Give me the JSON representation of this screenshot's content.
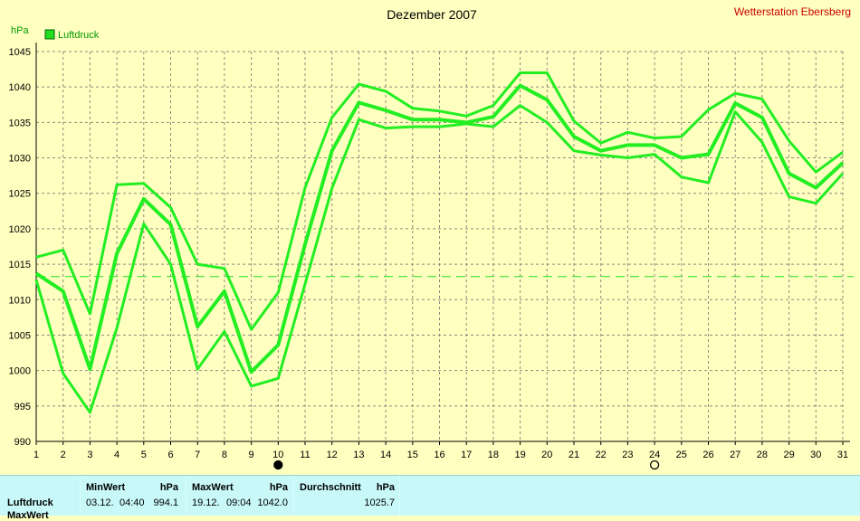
{
  "chart_data": {
    "type": "line",
    "title": "Dezember 2007",
    "station": "Wetterstation Ebersberg",
    "ylabel": "hPa",
    "legend": "Luftdruck",
    "legend_position": "top-left",
    "grid": true,
    "ylim": [
      990,
      1045
    ],
    "yticks": [
      990,
      995,
      1000,
      1005,
      1010,
      1015,
      1020,
      1025,
      1030,
      1035,
      1040,
      1045
    ],
    "x": [
      1,
      2,
      3,
      4,
      5,
      6,
      7,
      8,
      9,
      10,
      11,
      12,
      13,
      14,
      15,
      16,
      17,
      18,
      19,
      20,
      21,
      22,
      23,
      24,
      25,
      26,
      27,
      28,
      29,
      30,
      31
    ],
    "reference_line": 1013.25,
    "series": [
      {
        "role": "max",
        "values": [
          1016.0,
          1017.0,
          1008.0,
          1026.2,
          1026.4,
          1023.0,
          1015.0,
          1014.4,
          1005.8,
          1011.0,
          1025.8,
          1035.7,
          1040.4,
          1039.4,
          1037.0,
          1036.6,
          1035.9,
          1037.4,
          1042.0,
          1042.0,
          1035.2,
          1032.1,
          1033.6,
          1032.8,
          1033.0,
          1036.8,
          1039.1,
          1038.3,
          1032.4,
          1028.0,
          1030.8
        ]
      },
      {
        "role": "mean",
        "values": [
          1013.7,
          1011.2,
          1000.2,
          1016.5,
          1024.2,
          1020.6,
          1006.2,
          1011.2,
          999.8,
          1003.6,
          1017.8,
          1031.0,
          1037.8,
          1036.7,
          1035.4,
          1035.4,
          1035.0,
          1035.8,
          1040.2,
          1038.2,
          1033.0,
          1031.0,
          1031.8,
          1031.8,
          1030.0,
          1030.5,
          1037.7,
          1035.7,
          1027.8,
          1025.8,
          1029.3
        ]
      },
      {
        "role": "min",
        "values": [
          1012.8,
          999.6,
          994.1,
          1006.0,
          1020.7,
          1015.0,
          1000.2,
          1005.5,
          997.8,
          998.9,
          1012.2,
          1025.7,
          1035.4,
          1034.2,
          1034.4,
          1034.4,
          1034.8,
          1034.4,
          1037.4,
          1035.0,
          1031.0,
          1030.4,
          1030.0,
          1030.5,
          1027.3,
          1026.5,
          1036.5,
          1032.2,
          1024.5,
          1023.6,
          1027.8
        ]
      }
    ],
    "markers": [
      {
        "x": 10,
        "symbol": "filled-circle",
        "meaning": "new-moon-icon"
      },
      {
        "x": 24,
        "symbol": "open-circle",
        "meaning": "full-moon-icon"
      }
    ],
    "colors": {
      "line": "#22ee22",
      "background": "#ffffc0",
      "grid": "#8c8c7c",
      "station": "#cc0000",
      "axis_label": "#009900"
    }
  },
  "stats": {
    "row_label": "Luftdruck",
    "row2_label": "MaxWert",
    "min": {
      "header": "MinWert",
      "unit": "hPa",
      "date": "03.12.",
      "time": "04:40",
      "value": "994.1"
    },
    "max": {
      "header": "MaxWert",
      "unit": "hPa",
      "date": "19.12.",
      "time": "09:04",
      "value": "1042.0"
    },
    "avg": {
      "header": "Durchschnitt",
      "unit": "hPa",
      "value": "1025.7"
    }
  }
}
